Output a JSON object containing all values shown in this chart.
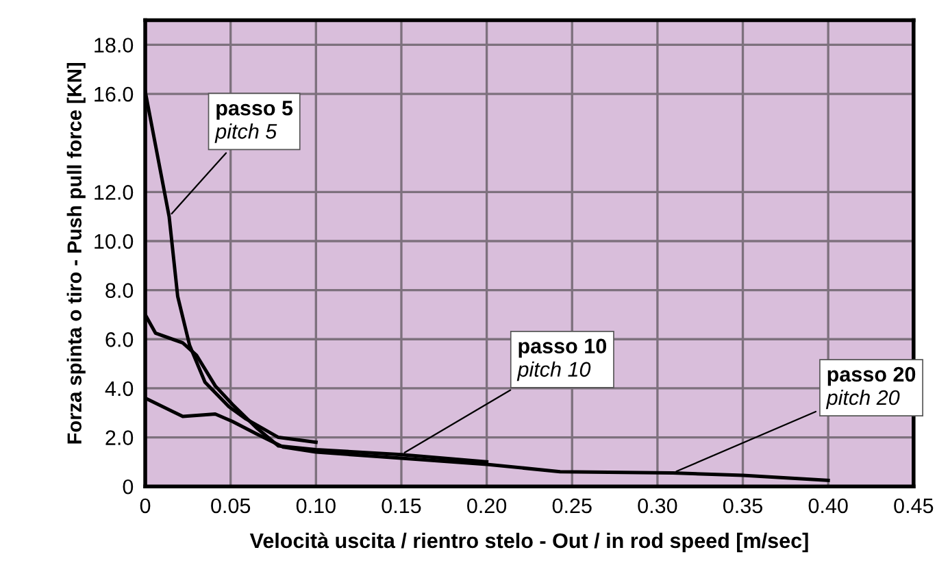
{
  "chart_data": {
    "type": "line",
    "xlabel": "Velocità uscita / rientro stelo - Out / in rod speed [m/sec]",
    "ylabel": "Forza spinta o tiro - Push pull force [KN]",
    "xlim": [
      0,
      0.45
    ],
    "ylim": [
      0,
      19
    ],
    "xticks": [
      {
        "value": 0,
        "label": "0"
      },
      0.05,
      {
        "value": 0.1,
        "label": "0.10"
      },
      0.15,
      {
        "value": 0.2,
        "label": "0.20"
      },
      0.25,
      {
        "value": 0.3,
        "label": "0.30"
      },
      0.35,
      {
        "value": 0.4,
        "label": "0.40"
      },
      0.45
    ],
    "yticks": [
      {
        "value": 0,
        "label": "0"
      },
      {
        "value": 2,
        "label": "2.0"
      },
      {
        "value": 4,
        "label": "4.0"
      },
      {
        "value": 6,
        "label": "6.0"
      },
      {
        "value": 8,
        "label": "8.0"
      },
      {
        "value": 10,
        "label": "10.0"
      },
      {
        "value": 12,
        "label": "12.0"
      },
      {
        "value": 16,
        "label": "16.0"
      },
      {
        "value": 18,
        "label": "18.0"
      }
    ],
    "grid": true,
    "marker": "none",
    "line_style": "solid",
    "series": [
      {
        "color": "#000000",
        "x": [
          0,
          0.014,
          0.019,
          0.026,
          0.035,
          0.049,
          0.059,
          0.078,
          0.1
        ],
        "values": [
          16.1,
          11.0,
          7.75,
          5.75,
          4.25,
          3.25,
          2.75,
          2.0,
          1.8
        ]
      },
      {
        "color": "#000000",
        "x": [
          0,
          0.006,
          0.022,
          0.03,
          0.041,
          0.051,
          0.065,
          0.078,
          0.1,
          0.15,
          0.2
        ],
        "values": [
          7.0,
          6.25,
          5.85,
          5.35,
          4.1,
          3.35,
          2.4,
          1.65,
          1.5,
          1.3,
          1.0
        ]
      },
      {
        "color": "#000000",
        "x": [
          0,
          0.022,
          0.041,
          0.051,
          0.065,
          0.081,
          0.1,
          0.15,
          0.2,
          0.243,
          0.309,
          0.35,
          0.4
        ],
        "values": [
          3.6,
          2.85,
          2.95,
          2.65,
          2.15,
          1.6,
          1.4,
          1.15,
          0.9,
          0.6,
          0.55,
          0.45,
          0.25
        ]
      }
    ],
    "annotations": [
      {
        "text": "passo 5\npitch 5",
        "x": 0.014,
        "y": 11.0
      },
      {
        "text": "passo 10\npitch 10",
        "x": 0.15,
        "y": 1.3
      },
      {
        "text": "passo 20\npitch 20",
        "x": 0.309,
        "y": 0.55
      }
    ]
  }
}
